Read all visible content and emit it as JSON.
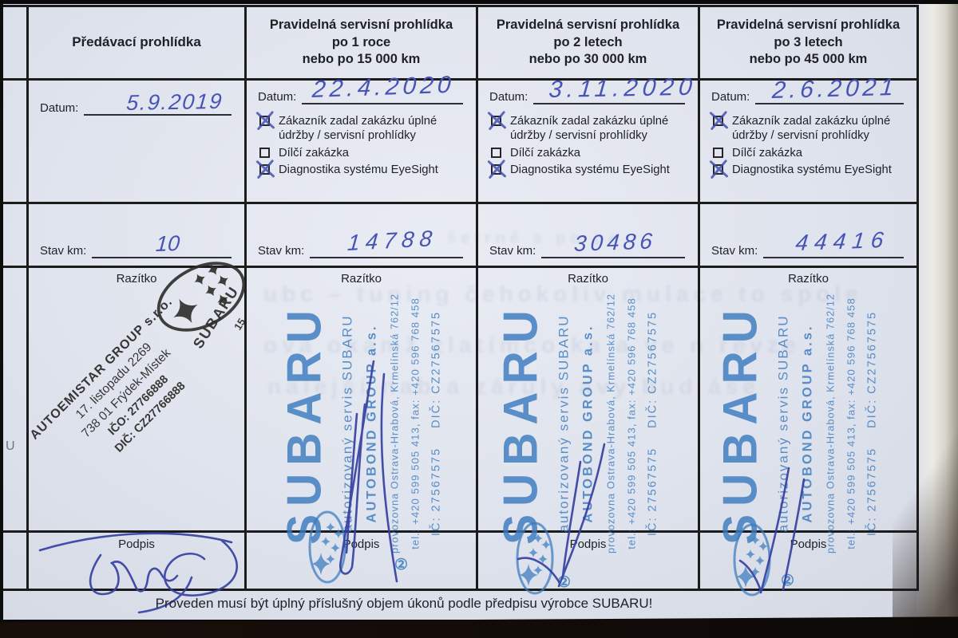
{
  "table": {
    "field_labels": {
      "date": "Datum:",
      "km": "Stav km:",
      "stamp": "Razítko",
      "signature": "Podpis"
    },
    "checkbox_items": [
      "Zákazník zadal zakázku úplné údržby / servisní prohlídky",
      "Dílčí zakázka",
      "Diagnostika systému EyeSight"
    ],
    "columns": [
      {
        "header": [
          "Předávací prohlídka"
        ],
        "date": "5.9.2019",
        "km": "10",
        "checkboxes": []
      },
      {
        "header": [
          "Pravidelná servisní prohlídka",
          "po 1 roce",
          "nebo po 15 000 km"
        ],
        "date": "22.4.2020",
        "km": "14788",
        "checkboxes": [
          true,
          false,
          true
        ]
      },
      {
        "header": [
          "Pravidelná servisní prohlídka",
          "po 2 letech",
          "nebo po 30 000 km"
        ],
        "date": "3.11.2020",
        "km": "30486",
        "checkboxes": [
          true,
          false,
          true
        ]
      },
      {
        "header": [
          "Pravidelná servisní prohlídka",
          "po 3 letech",
          "nebo po 45 000 km"
        ],
        "date": "2.6.2021",
        "km": "44416",
        "checkboxes": [
          true,
          false,
          true
        ]
      }
    ]
  },
  "stamps": {
    "dealer_black": {
      "lines": [
        "AUTOEMISTAR GROUP s.r.o.",
        "17. listopadu 2269",
        "738 01 Frýdek-Místek",
        "IČO: 27766888",
        "DIČ: CZ27766888"
      ],
      "logo_text": "SUBARU",
      "dealer_number": "15"
    },
    "service_blue": {
      "brand": "SUBARU",
      "lines": [
        "autorizovaný servis SUBARU",
        "AUTOBOND GROUP a.s.",
        "provozovna Ostrava-Hrabová, Krmelínská 762/12",
        "tel.: +420 599 505 413, fax: +420 596 768 458",
        "IČ: 27567575    DIČ: CZ27567575"
      ],
      "badge": "②"
    }
  },
  "footer": "Proveden musí být úplný příslušný objem úkonů podle předpisu výrobce SUBARU!",
  "page_edge": {
    "margin_letter": "U"
  },
  "bleed_through_fragments": [
    "šetrně s po pe",
    "ubc – tuning čehokoliv mulace to spole",
    "ova okamž zlatímco ka a ve n řevze",
    "nalejší nab a záruly avy bud áse"
  ],
  "colors": {
    "paper": "#e1e4ed",
    "ink_print": "#1f2126",
    "ink_handwriting": "#4853b6",
    "stamp_blue": "#3a7abe",
    "stamp_black": "#2d2c2a"
  }
}
